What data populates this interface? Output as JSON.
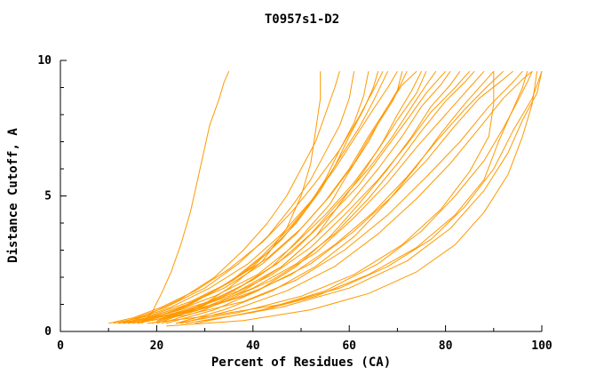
{
  "chart_data": {
    "type": "line",
    "title": "T0957s1-D2",
    "xlabel": "Percent of Residues (CA)",
    "ylabel": "Distance Cutoff, A",
    "xlim": [
      0,
      100
    ],
    "ylim": [
      0,
      10
    ],
    "xticks_major": [
      0,
      20,
      40,
      60,
      80,
      100
    ],
    "xticks_minor": [
      10,
      30,
      50,
      70,
      90
    ],
    "yticks_major": [
      0,
      5,
      10
    ],
    "yticks_minor": [
      1,
      2,
      3,
      4,
      6,
      7,
      8,
      9
    ],
    "legend": "none",
    "grid": "off",
    "line_color": "#ff9900",
    "axis_color": "#000000",
    "background_color": "#ffffff",
    "series": [
      [
        [
          17,
          0.3
        ],
        [
          19,
          0.7
        ],
        [
          21,
          1.4
        ],
        [
          23,
          2.2
        ],
        [
          25,
          3.2
        ],
        [
          27,
          4.4
        ],
        [
          28,
          5.2
        ],
        [
          29,
          6.0
        ],
        [
          30,
          6.8
        ],
        [
          31,
          7.6
        ],
        [
          33,
          8.6
        ],
        [
          34,
          9.2
        ],
        [
          35,
          9.6
        ]
      ],
      [
        [
          20,
          0.3
        ],
        [
          28,
          0.8
        ],
        [
          35,
          1.6
        ],
        [
          42,
          2.6
        ],
        [
          47,
          3.8
        ],
        [
          50,
          5.0
        ],
        [
          52,
          6.2
        ],
        [
          53,
          7.4
        ],
        [
          54,
          8.6
        ],
        [
          54,
          9.6
        ]
      ],
      [
        [
          12,
          0.3
        ],
        [
          18,
          0.6
        ],
        [
          25,
          1.2
        ],
        [
          32,
          2.0
        ],
        [
          38,
          3.0
        ],
        [
          43,
          4.0
        ],
        [
          47,
          5.0
        ],
        [
          50,
          6.0
        ],
        [
          53,
          7.0
        ],
        [
          55,
          8.0
        ],
        [
          57,
          9.0
        ],
        [
          58,
          9.6
        ]
      ],
      [
        [
          14,
          0.4
        ],
        [
          22,
          0.9
        ],
        [
          30,
          1.6
        ],
        [
          37,
          2.5
        ],
        [
          43,
          3.5
        ],
        [
          48,
          4.6
        ],
        [
          52,
          5.6
        ],
        [
          55,
          6.6
        ],
        [
          58,
          7.6
        ],
        [
          60,
          8.6
        ],
        [
          61,
          9.6
        ]
      ],
      [
        [
          16,
          0.3
        ],
        [
          24,
          0.8
        ],
        [
          32,
          1.5
        ],
        [
          40,
          2.4
        ],
        [
          46,
          3.4
        ],
        [
          51,
          4.5
        ],
        [
          55,
          5.6
        ],
        [
          58,
          6.7
        ],
        [
          61,
          7.7
        ],
        [
          63,
          8.7
        ],
        [
          64,
          9.6
        ]
      ],
      [
        [
          18,
          0.4
        ],
        [
          27,
          1.0
        ],
        [
          35,
          1.8
        ],
        [
          42,
          2.8
        ],
        [
          48,
          3.9
        ],
        [
          53,
          5.0
        ],
        [
          57,
          6.1
        ],
        [
          60,
          7.2
        ],
        [
          63,
          8.2
        ],
        [
          65,
          9.0
        ],
        [
          66,
          9.6
        ]
      ],
      [
        [
          13,
          0.3
        ],
        [
          20,
          0.6
        ],
        [
          28,
          1.1
        ],
        [
          36,
          1.9
        ],
        [
          43,
          2.9
        ],
        [
          49,
          4.0
        ],
        [
          54,
          5.2
        ],
        [
          58,
          6.4
        ],
        [
          62,
          7.5
        ],
        [
          65,
          8.5
        ],
        [
          68,
          9.6
        ]
      ],
      [
        [
          15,
          0.4
        ],
        [
          23,
          0.9
        ],
        [
          31,
          1.6
        ],
        [
          39,
          2.5
        ],
        [
          46,
          3.6
        ],
        [
          52,
          4.8
        ],
        [
          57,
          6.0
        ],
        [
          61,
          7.1
        ],
        [
          65,
          8.2
        ],
        [
          68,
          9.0
        ],
        [
          70,
          9.6
        ]
      ],
      [
        [
          19,
          0.3
        ],
        [
          28,
          0.8
        ],
        [
          36,
          1.5
        ],
        [
          44,
          2.4
        ],
        [
          50,
          3.5
        ],
        [
          56,
          4.7
        ],
        [
          60,
          5.9
        ],
        [
          64,
          7.0
        ],
        [
          67,
          8.0
        ],
        [
          70,
          8.9
        ],
        [
          71,
          9.6
        ]
      ],
      [
        [
          11,
          0.3
        ],
        [
          19,
          0.6
        ],
        [
          27,
          1.1
        ],
        [
          35,
          1.8
        ],
        [
          43,
          2.7
        ],
        [
          50,
          3.8
        ],
        [
          56,
          5.0
        ],
        [
          61,
          6.2
        ],
        [
          65,
          7.4
        ],
        [
          69,
          8.5
        ],
        [
          72,
          9.6
        ]
      ],
      [
        [
          16,
          0.4
        ],
        [
          25,
          0.9
        ],
        [
          34,
          1.6
        ],
        [
          42,
          2.5
        ],
        [
          49,
          3.6
        ],
        [
          55,
          4.8
        ],
        [
          60,
          6.0
        ],
        [
          64,
          7.2
        ],
        [
          68,
          8.3
        ],
        [
          71,
          9.1
        ],
        [
          74,
          9.6
        ]
      ],
      [
        [
          21,
          0.3
        ],
        [
          30,
          0.8
        ],
        [
          38,
          1.5
        ],
        [
          46,
          2.4
        ],
        [
          53,
          3.5
        ],
        [
          58,
          4.7
        ],
        [
          63,
          5.9
        ],
        [
          67,
          7.0
        ],
        [
          70,
          8.0
        ],
        [
          73,
          8.9
        ],
        [
          75,
          9.6
        ]
      ],
      [
        [
          14,
          0.3
        ],
        [
          23,
          0.7
        ],
        [
          32,
          1.3
        ],
        [
          41,
          2.1
        ],
        [
          48,
          3.1
        ],
        [
          55,
          4.3
        ],
        [
          61,
          5.5
        ],
        [
          66,
          6.7
        ],
        [
          70,
          7.8
        ],
        [
          74,
          8.8
        ],
        [
          76,
          9.6
        ]
      ],
      [
        [
          18,
          0.4
        ],
        [
          28,
          0.9
        ],
        [
          37,
          1.6
        ],
        [
          45,
          2.5
        ],
        [
          52,
          3.6
        ],
        [
          58,
          4.8
        ],
        [
          64,
          6.0
        ],
        [
          69,
          7.2
        ],
        [
          73,
          8.3
        ],
        [
          76,
          9.1
        ],
        [
          78,
          9.6
        ]
      ],
      [
        [
          12,
          0.3
        ],
        [
          21,
          0.6
        ],
        [
          31,
          1.1
        ],
        [
          40,
          1.9
        ],
        [
          48,
          2.9
        ],
        [
          55,
          4.1
        ],
        [
          62,
          5.4
        ],
        [
          67,
          6.6
        ],
        [
          72,
          7.8
        ],
        [
          76,
          8.8
        ],
        [
          80,
          9.6
        ]
      ],
      [
        [
          17,
          0.4
        ],
        [
          27,
          0.8
        ],
        [
          37,
          1.5
        ],
        [
          46,
          2.4
        ],
        [
          53,
          3.5
        ],
        [
          60,
          4.7
        ],
        [
          66,
          6.0
        ],
        [
          71,
          7.2
        ],
        [
          75,
          8.3
        ],
        [
          79,
          9.1
        ],
        [
          81,
          9.6
        ]
      ],
      [
        [
          22,
          0.3
        ],
        [
          32,
          0.8
        ],
        [
          41,
          1.5
        ],
        [
          49,
          2.4
        ],
        [
          56,
          3.5
        ],
        [
          62,
          4.7
        ],
        [
          68,
          6.0
        ],
        [
          73,
          7.2
        ],
        [
          77,
          8.3
        ],
        [
          81,
          9.1
        ],
        [
          83,
          9.6
        ]
      ],
      [
        [
          15,
          0.3
        ],
        [
          25,
          0.7
        ],
        [
          35,
          1.3
        ],
        [
          44,
          2.1
        ],
        [
          52,
          3.1
        ],
        [
          59,
          4.3
        ],
        [
          66,
          5.6
        ],
        [
          72,
          6.9
        ],
        [
          77,
          8.1
        ],
        [
          82,
          9.0
        ],
        [
          85,
          9.6
        ]
      ],
      [
        [
          19,
          0.4
        ],
        [
          30,
          0.9
        ],
        [
          40,
          1.6
        ],
        [
          49,
          2.5
        ],
        [
          57,
          3.6
        ],
        [
          64,
          4.9
        ],
        [
          70,
          6.2
        ],
        [
          75,
          7.4
        ],
        [
          80,
          8.5
        ],
        [
          84,
          9.2
        ],
        [
          86,
          9.6
        ]
      ],
      [
        [
          13,
          0.3
        ],
        [
          23,
          0.6
        ],
        [
          34,
          1.1
        ],
        [
          44,
          1.9
        ],
        [
          53,
          2.9
        ],
        [
          61,
          4.2
        ],
        [
          68,
          5.5
        ],
        [
          74,
          6.8
        ],
        [
          80,
          8.0
        ],
        [
          85,
          9.0
        ],
        [
          88,
          9.6
        ]
      ],
      [
        [
          24,
          0.3
        ],
        [
          34,
          0.8
        ],
        [
          44,
          1.5
        ],
        [
          53,
          2.4
        ],
        [
          61,
          3.5
        ],
        [
          68,
          4.8
        ],
        [
          74,
          6.1
        ],
        [
          79,
          7.3
        ],
        [
          84,
          8.4
        ],
        [
          88,
          9.2
        ],
        [
          90,
          9.6
        ]
      ],
      [
        [
          16,
          0.3
        ],
        [
          27,
          0.7
        ],
        [
          38,
          1.3
        ],
        [
          48,
          2.1
        ],
        [
          57,
          3.2
        ],
        [
          65,
          4.4
        ],
        [
          72,
          5.7
        ],
        [
          78,
          7.0
        ],
        [
          84,
          8.2
        ],
        [
          89,
          9.1
        ],
        [
          92,
          9.6
        ]
      ],
      [
        [
          20,
          0.4
        ],
        [
          31,
          0.9
        ],
        [
          42,
          1.6
        ],
        [
          52,
          2.5
        ],
        [
          61,
          3.7
        ],
        [
          69,
          5.0
        ],
        [
          76,
          6.3
        ],
        [
          82,
          7.6
        ],
        [
          87,
          8.6
        ],
        [
          92,
          9.3
        ],
        [
          94,
          9.6
        ]
      ],
      [
        [
          14,
          0.3
        ],
        [
          26,
          0.6
        ],
        [
          38,
          1.1
        ],
        [
          49,
          1.9
        ],
        [
          59,
          3.0
        ],
        [
          68,
          4.3
        ],
        [
          76,
          5.7
        ],
        [
          83,
          7.0
        ],
        [
          89,
          8.3
        ],
        [
          94,
          9.2
        ],
        [
          96,
          9.6
        ]
      ],
      [
        [
          25,
          0.3
        ],
        [
          36,
          0.8
        ],
        [
          47,
          1.5
        ],
        [
          57,
          2.4
        ],
        [
          66,
          3.6
        ],
        [
          74,
          4.9
        ],
        [
          81,
          6.2
        ],
        [
          87,
          7.5
        ],
        [
          92,
          8.6
        ],
        [
          96,
          9.3
        ],
        [
          98,
          9.6
        ]
      ],
      [
        [
          18,
          0.3
        ],
        [
          32,
          0.6
        ],
        [
          46,
          1.0
        ],
        [
          58,
          1.6
        ],
        [
          68,
          2.4
        ],
        [
          77,
          3.4
        ],
        [
          84,
          4.6
        ],
        [
          90,
          6.0
        ],
        [
          94,
          7.4
        ],
        [
          98,
          8.6
        ],
        [
          100,
          9.6
        ]
      ],
      [
        [
          22,
          0.2
        ],
        [
          38,
          0.4
        ],
        [
          52,
          0.8
        ],
        [
          64,
          1.4
        ],
        [
          74,
          2.2
        ],
        [
          82,
          3.2
        ],
        [
          88,
          4.4
        ],
        [
          93,
          5.8
        ],
        [
          96,
          7.2
        ],
        [
          98,
          8.4
        ],
        [
          99,
          9.6
        ]
      ],
      [
        [
          26,
          0.3
        ],
        [
          40,
          0.7
        ],
        [
          53,
          1.3
        ],
        [
          64,
          2.1
        ],
        [
          74,
          3.1
        ],
        [
          82,
          4.3
        ],
        [
          88,
          5.6
        ],
        [
          91,
          7.0
        ],
        [
          94,
          8.2
        ],
        [
          96,
          9.0
        ],
        [
          97,
          9.6
        ]
      ],
      [
        [
          30,
          0.4
        ],
        [
          46,
          0.9
        ],
        [
          60,
          1.6
        ],
        [
          72,
          2.6
        ],
        [
          81,
          3.8
        ],
        [
          88,
          5.2
        ],
        [
          93,
          6.6
        ],
        [
          96,
          7.8
        ],
        [
          99,
          8.8
        ],
        [
          100,
          9.6
        ]
      ],
      [
        [
          24,
          0.3
        ],
        [
          37,
          0.7
        ],
        [
          50,
          1.3
        ],
        [
          61,
          2.1
        ],
        [
          71,
          3.2
        ],
        [
          79,
          4.5
        ],
        [
          85,
          5.9
        ],
        [
          89,
          7.2
        ],
        [
          90,
          8.4
        ],
        [
          90,
          9.6
        ]
      ],
      [
        [
          10,
          0.3
        ],
        [
          15,
          0.5
        ],
        [
          21,
          0.9
        ],
        [
          28,
          1.5
        ],
        [
          35,
          2.3
        ],
        [
          42,
          3.3
        ],
        [
          48,
          4.4
        ],
        [
          53,
          5.5
        ],
        [
          58,
          6.7
        ],
        [
          62,
          7.9
        ],
        [
          65,
          8.9
        ],
        [
          67,
          9.6
        ]
      ],
      [
        [
          28,
          0.3
        ],
        [
          42,
          0.8
        ],
        [
          55,
          1.5
        ],
        [
          66,
          2.5
        ],
        [
          75,
          3.7
        ],
        [
          82,
          5.0
        ],
        [
          88,
          6.3
        ],
        [
          92,
          7.5
        ],
        [
          95,
          8.5
        ],
        [
          97,
          9.2
        ],
        [
          98,
          9.6
        ]
      ]
    ]
  }
}
